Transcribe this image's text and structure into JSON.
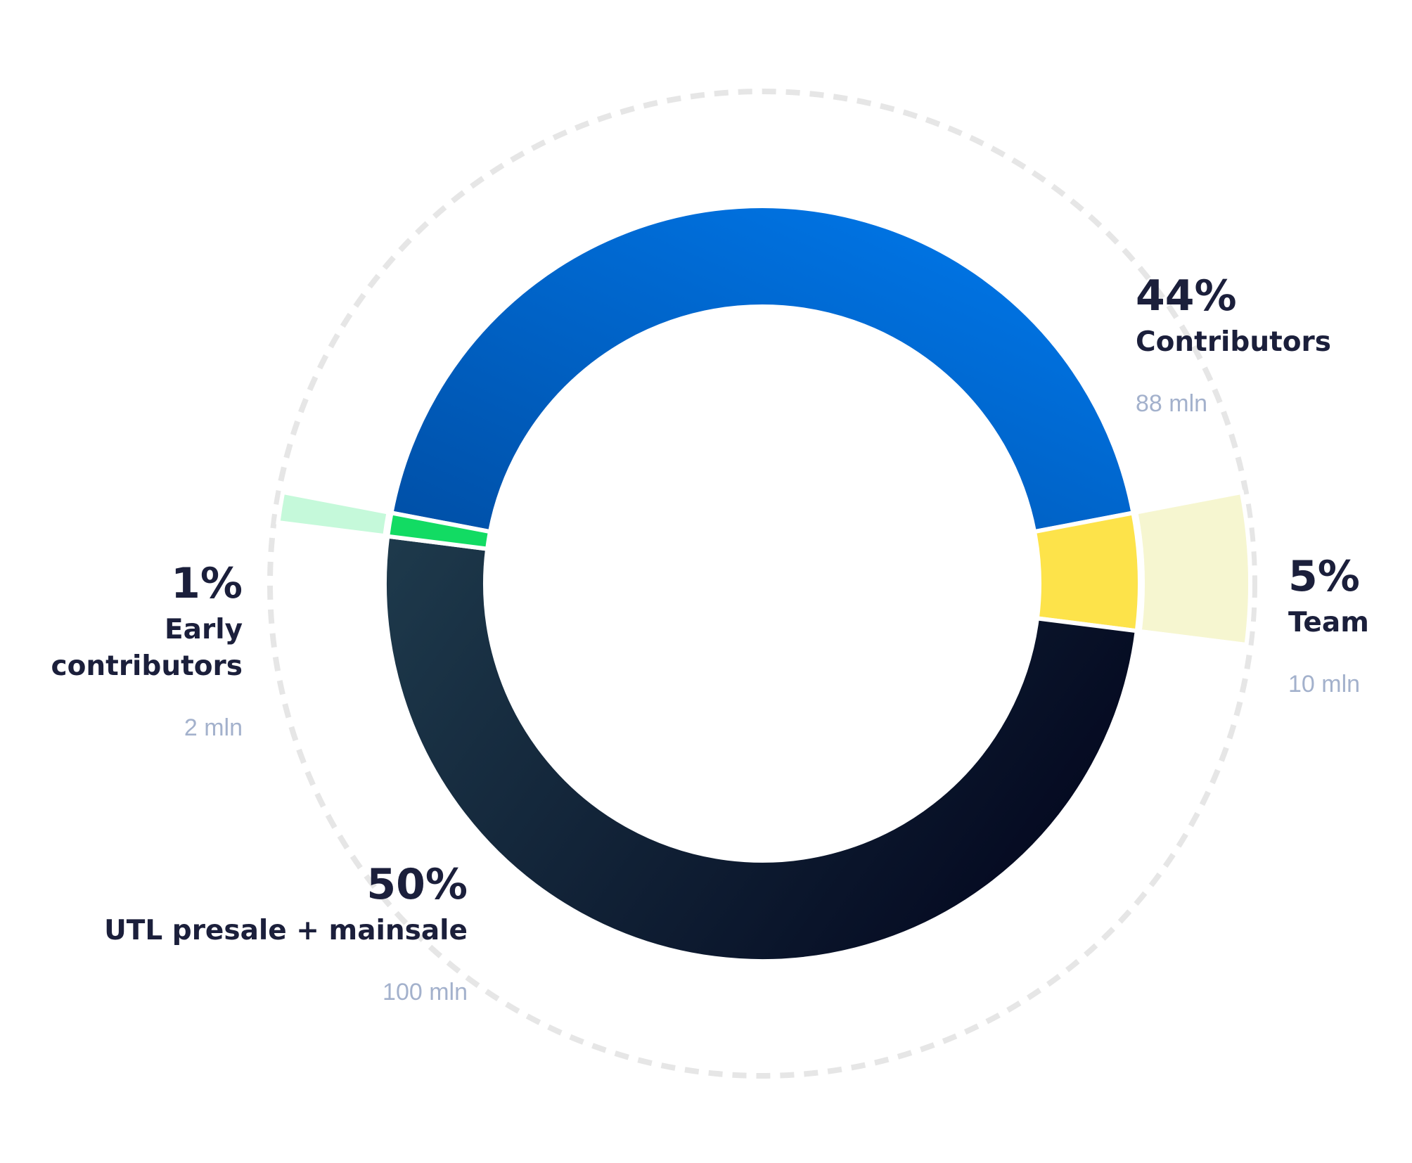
{
  "chart_data": {
    "type": "donut",
    "categories": [
      "Contributors",
      "Team",
      "UTL presale + mainsale",
      "Early contributors"
    ],
    "values": [
      44,
      5,
      50,
      1
    ],
    "value_labels": [
      "44%",
      "5%",
      "50%",
      "1%"
    ],
    "amount_labels": [
      "88 mln",
      "10 mln",
      "100 mln",
      "2 mln"
    ],
    "colors": [
      "#006be0",
      "#fde34a",
      "#112034",
      "#12db63"
    ],
    "outer_colors": [
      null,
      "#f6f6d0",
      null,
      "#c5f9da"
    ]
  }
}
